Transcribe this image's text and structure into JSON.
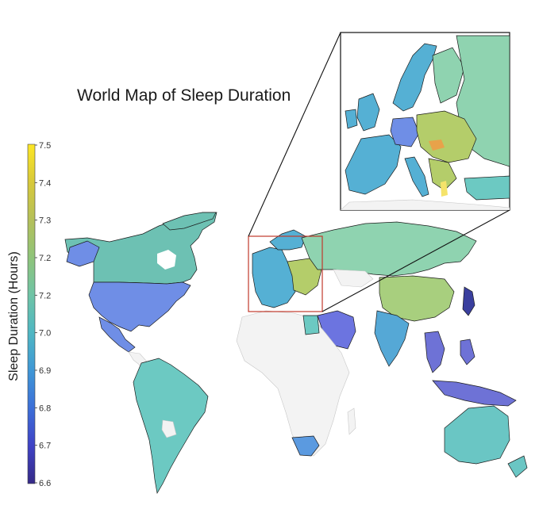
{
  "title": "World Map of Sleep Duration",
  "colorbar": {
    "label": "Sleep Duration (Hours)",
    "ticks": [
      "7.5",
      "7.4",
      "7.3",
      "7.2",
      "7.2",
      "7.0",
      "6.9",
      "6.8",
      "6.7",
      "6.6"
    ],
    "colors": [
      "#fde725",
      "#d8c93a",
      "#b5c05a",
      "#8fc47a",
      "#6fc4a6",
      "#4fb7c3",
      "#3f97d6",
      "#3c6fd8",
      "#3f42c6",
      "#352a87"
    ]
  },
  "map_colors": {
    "north_america": "#6aa0e6",
    "usa": "#6f8ee6",
    "canada": "#6dc1b3",
    "south_america": "#6cc9c2",
    "europe_west": "#55b0d4",
    "eastern_europe": "#b4cd6a",
    "russia": "#8fd3b0",
    "china": "#a8cf7e",
    "india": "#55a8d6",
    "south_east_asia": "#6e72d6",
    "australia": "#6ac6c4",
    "africa_empty": "#f3f3f3",
    "south_africa": "#5b9ae0",
    "middle_east": "#6c74e0",
    "japan": "#3a3f9e"
  },
  "inset_box_color": "#c0392b"
}
